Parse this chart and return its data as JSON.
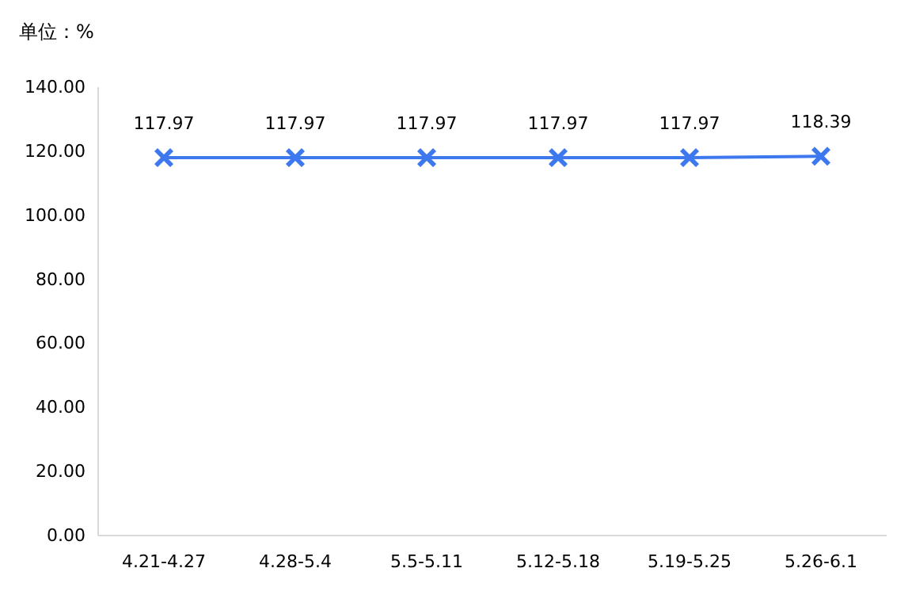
{
  "chart_data": {
    "type": "line",
    "ylabel": "单位：%",
    "categories": [
      "4.21-4.27",
      "4.28-5.4",
      "5.5-5.11",
      "5.12-5.18",
      "5.19-5.25",
      "5.26-6.1"
    ],
    "values": [
      117.97,
      117.97,
      117.97,
      117.97,
      117.97,
      118.39
    ],
    "color": "#3d78ee",
    "marker": "cross",
    "data_labels": true,
    "ylim": [
      0,
      140
    ],
    "yticks": [
      {
        "value": 0,
        "label": "0.00"
      },
      {
        "value": 20,
        "label": "20.00"
      },
      {
        "value": 40,
        "label": "40.00"
      },
      {
        "value": 60,
        "label": "60.00"
      },
      {
        "value": 80,
        "label": "80.00"
      },
      {
        "value": 100,
        "label": "100.00"
      },
      {
        "value": 120,
        "label": "120.00"
      },
      {
        "value": 140,
        "label": "140.00"
      }
    ]
  }
}
